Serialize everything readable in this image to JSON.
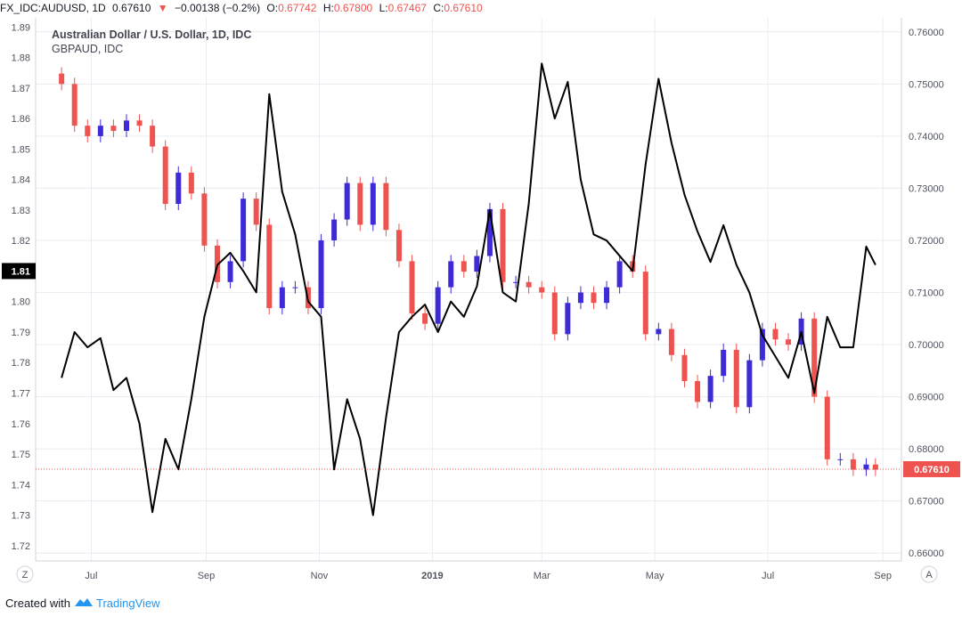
{
  "header": {
    "symbol": "FX_IDC:AUDUSD, 1D",
    "last": "0.67610",
    "change_arrow": "▼",
    "change": "−0.00138 (−0.2%)",
    "open_label": "O:",
    "open": "0.67742",
    "high_label": "H:",
    "high": "0.67800",
    "low_label": "L:",
    "low": "0.67467",
    "close_label": "C:",
    "close": "0.67610"
  },
  "legend": {
    "main": "Australian Dollar / U.S. Dollar, 1D, IDC",
    "compare": "GBPAUD, IDC"
  },
  "buttons": {
    "zoom_label": "Z",
    "auto_label": "A"
  },
  "footer": {
    "created_with": "Created with",
    "brand": "TradingView"
  },
  "colors": {
    "up": "#3d2bd8",
    "down": "#ef5350",
    "gbpaud_line": "#000000",
    "price_tag": "#ef5350",
    "left_tag": "#000000",
    "grid": "#e9ecf1",
    "brand": "#2196f3"
  },
  "chart_data": {
    "type": "line",
    "title": "Australian Dollar / U.S. Dollar, 1D, IDC",
    "xlabel": "",
    "ylabel": "",
    "x_ticks": [
      "Jul",
      "Sep",
      "Nov",
      "2019",
      "Mar",
      "May",
      "Jul",
      "Sep"
    ],
    "left_axis": {
      "ticks": [
        "1.89",
        "1.88",
        "1.87",
        "1.86",
        "1.85",
        "1.84",
        "1.83",
        "1.82",
        "1.81",
        "1.80",
        "1.79",
        "1.78",
        "1.77",
        "1.76",
        "1.75",
        "1.74",
        "1.73",
        "1.72"
      ],
      "ylim": [
        1.715,
        1.893
      ],
      "last_label": "1.81"
    },
    "right_axis": {
      "ticks": [
        "0.76000",
        "0.75000",
        "0.74000",
        "0.73000",
        "0.72000",
        "0.71000",
        "0.70000",
        "0.69000",
        "0.68000",
        "0.67000",
        "0.66000"
      ],
      "ylim": [
        0.6585,
        0.7627
      ],
      "last_label": "0.67610"
    },
    "grid": true,
    "series": [
      {
        "name": "Australian Dollar / U.S. Dollar, 1D, IDC",
        "style": "candlestick",
        "axis": "right",
        "x": [
          "2018-06-15",
          "2018-06-22",
          "2018-06-29",
          "2018-07-06",
          "2018-07-13",
          "2018-07-20",
          "2018-07-27",
          "2018-08-03",
          "2018-08-10",
          "2018-08-17",
          "2018-08-24",
          "2018-08-31",
          "2018-09-07",
          "2018-09-14",
          "2018-09-21",
          "2018-09-28",
          "2018-10-05",
          "2018-10-12",
          "2018-10-19",
          "2018-10-26",
          "2018-11-02",
          "2018-11-09",
          "2018-11-16",
          "2018-11-23",
          "2018-11-30",
          "2018-12-07",
          "2018-12-14",
          "2018-12-21",
          "2018-12-28",
          "2019-01-04",
          "2019-01-11",
          "2019-01-18",
          "2019-01-25",
          "2019-02-01",
          "2019-02-08",
          "2019-02-15",
          "2019-02-22",
          "2019-03-01",
          "2019-03-08",
          "2019-03-15",
          "2019-03-22",
          "2019-03-29",
          "2019-04-05",
          "2019-04-12",
          "2019-04-19",
          "2019-04-26",
          "2019-05-03",
          "2019-05-10",
          "2019-05-17",
          "2019-05-24",
          "2019-05-31",
          "2019-06-07",
          "2019-06-14",
          "2019-06-21",
          "2019-06-28",
          "2019-07-05",
          "2019-07-12",
          "2019-07-19",
          "2019-07-26",
          "2019-08-02",
          "2019-08-09",
          "2019-08-16",
          "2019-08-23",
          "2019-08-28"
        ],
        "values": [
          0.75,
          0.742,
          0.74,
          0.742,
          0.741,
          0.743,
          0.742,
          0.738,
          0.727,
          0.733,
          0.729,
          0.719,
          0.712,
          0.716,
          0.728,
          0.723,
          0.707,
          0.711,
          0.711,
          0.707,
          0.72,
          0.724,
          0.731,
          0.723,
          0.731,
          0.722,
          0.716,
          0.706,
          0.704,
          0.711,
          0.716,
          0.714,
          0.717,
          0.726,
          0.712,
          0.712,
          0.711,
          0.71,
          0.702,
          0.708,
          0.71,
          0.708,
          0.711,
          0.716,
          0.714,
          0.702,
          0.703,
          0.698,
          0.693,
          0.689,
          0.694,
          0.699,
          0.688,
          0.697,
          0.703,
          0.701,
          0.7,
          0.705,
          0.69,
          0.678,
          0.678,
          0.676,
          0.677,
          0.676
        ],
        "ohlc_last": [
          0.67742,
          0.678,
          0.67467,
          0.6761
        ]
      },
      {
        "name": "GBPAUD, IDC",
        "style": "line",
        "axis": "left",
        "x": [
          "2018-06-15",
          "2018-06-22",
          "2018-06-29",
          "2018-07-06",
          "2018-07-13",
          "2018-07-20",
          "2018-07-27",
          "2018-08-03",
          "2018-08-10",
          "2018-08-17",
          "2018-08-24",
          "2018-08-31",
          "2018-09-07",
          "2018-09-14",
          "2018-09-21",
          "2018-09-28",
          "2018-10-05",
          "2018-10-12",
          "2018-10-19",
          "2018-10-26",
          "2018-11-02",
          "2018-11-09",
          "2018-11-16",
          "2018-11-23",
          "2018-11-30",
          "2018-12-07",
          "2018-12-14",
          "2018-12-21",
          "2018-12-28",
          "2019-01-04",
          "2019-01-11",
          "2019-01-18",
          "2019-01-25",
          "2019-02-01",
          "2019-02-08",
          "2019-02-15",
          "2019-02-22",
          "2019-03-01",
          "2019-03-08",
          "2019-03-15",
          "2019-03-22",
          "2019-03-29",
          "2019-04-05",
          "2019-04-12",
          "2019-04-19",
          "2019-04-26",
          "2019-05-03",
          "2019-05-10",
          "2019-05-17",
          "2019-05-24",
          "2019-05-31",
          "2019-06-07",
          "2019-06-14",
          "2019-06-21",
          "2019-06-28",
          "2019-07-05",
          "2019-07-12",
          "2019-07-19",
          "2019-07-26",
          "2019-08-02",
          "2019-08-09",
          "2019-08-16",
          "2019-08-23",
          "2019-08-28"
        ],
        "values": [
          1.775,
          1.79,
          1.785,
          1.788,
          1.771,
          1.775,
          1.76,
          1.731,
          1.755,
          1.745,
          1.768,
          1.795,
          1.812,
          1.816,
          1.81,
          1.803,
          1.868,
          1.836,
          1.822,
          1.8,
          1.795,
          1.745,
          1.768,
          1.755,
          1.73,
          1.762,
          1.79,
          1.795,
          1.799,
          1.79,
          1.8,
          1.795,
          1.805,
          1.83,
          1.803,
          1.8,
          1.832,
          1.878,
          1.86,
          1.872,
          1.84,
          1.822,
          1.82,
          1.815,
          1.81,
          1.845,
          1.873,
          1.852,
          1.835,
          1.823,
          1.813,
          1.825,
          1.812,
          1.803,
          1.789,
          1.782,
          1.775,
          1.79,
          1.77,
          1.795,
          1.785,
          1.785,
          1.818,
          1.812
        ]
      }
    ]
  }
}
